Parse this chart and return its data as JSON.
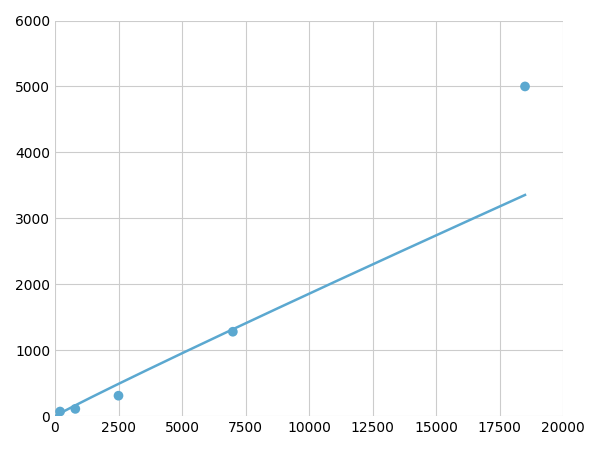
{
  "x": [
    200,
    800,
    2500,
    7000,
    18500
  ],
  "y": [
    70,
    110,
    310,
    1280,
    5000
  ],
  "line_color": "#5ba8d0",
  "marker_color": "#5ba8d0",
  "marker_size": 7,
  "line_width": 1.8,
  "xlim": [
    0,
    20000
  ],
  "ylim": [
    0,
    6000
  ],
  "xticks": [
    0,
    2500,
    5000,
    7500,
    10000,
    12500,
    15000,
    17500,
    20000
  ],
  "yticks": [
    0,
    1000,
    2000,
    3000,
    4000,
    5000,
    6000
  ],
  "xtick_labels": [
    "0",
    "2500",
    "5000",
    "7500",
    "10000",
    "12500",
    "15000",
    "17500",
    "20000"
  ],
  "ytick_labels": [
    "0",
    "1000",
    "2000",
    "3000",
    "4000",
    "5000",
    "6000"
  ],
  "grid_color": "#cccccc",
  "background_color": "#ffffff",
  "tick_fontsize": 10
}
